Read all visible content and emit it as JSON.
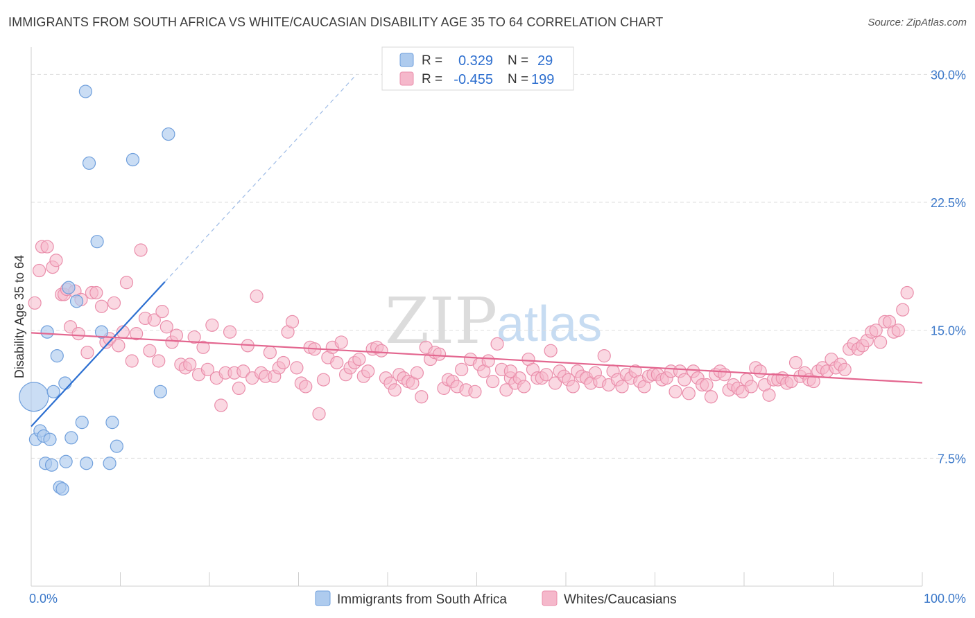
{
  "title": "IMMIGRANTS FROM SOUTH AFRICA VS WHITE/CAUCASIAN DISABILITY AGE 35 TO 64 CORRELATION CHART",
  "source": "Source: ZipAtlas.com",
  "watermark": {
    "zip": "ZIP",
    "atlas": "atlas"
  },
  "colors": {
    "blue_fill": "#aecbee",
    "blue_stroke": "#6f9fdc",
    "blue_line": "#2c6fd1",
    "pink_fill": "#f5b8cb",
    "pink_stroke": "#ea8eab",
    "pink_line": "#e3668f",
    "grid": "#dddddd",
    "axis_text": "#3b78c9"
  },
  "legend": {
    "rows": [
      {
        "r_label": "R =",
        "r_value": "0.329",
        "n_label": "N =",
        "n_value": "29",
        "color": "blue"
      },
      {
        "r_label": "R =",
        "r_value": "-0.455",
        "n_label": "N =",
        "n_value": "199",
        "color": "pink"
      }
    ]
  },
  "chart_data": {
    "type": "scatter",
    "title": "IMMIGRANTS FROM SOUTH AFRICA VS WHITE/CAUCASIAN DISABILITY AGE 35 TO 64 CORRELATION CHART",
    "xlabel": "",
    "ylabel": "Disability Age 35 to 64",
    "xlim": [
      0,
      100
    ],
    "ylim": [
      0,
      31.6
    ],
    "x_tick_labels": [
      {
        "value": 0,
        "label": "0.0%"
      },
      {
        "value": 100,
        "label": "100.0%"
      }
    ],
    "y_ticks": [
      {
        "value": 7.5,
        "label": "7.5%"
      },
      {
        "value": 15.0,
        "label": "15.0%"
      },
      {
        "value": 22.5,
        "label": "22.5%"
      },
      {
        "value": 30.0,
        "label": "30.0%"
      }
    ],
    "grid": true,
    "legend_position": "top-center",
    "series": [
      {
        "name": "Immigrants from South Africa",
        "color": "blue",
        "points": [
          [
            0.3,
            11.1,
            3
          ],
          [
            0.5,
            8.6,
            1
          ],
          [
            1.0,
            9.1,
            1
          ],
          [
            1.4,
            8.8,
            1
          ],
          [
            1.6,
            7.2,
            1
          ],
          [
            1.8,
            14.9,
            1
          ],
          [
            2.1,
            8.6,
            1
          ],
          [
            2.3,
            7.1,
            1
          ],
          [
            2.5,
            11.4,
            1
          ],
          [
            2.9,
            13.5,
            1
          ],
          [
            3.2,
            5.8,
            1
          ],
          [
            3.5,
            5.7,
            1
          ],
          [
            3.8,
            11.9,
            1
          ],
          [
            3.9,
            7.3,
            1
          ],
          [
            4.2,
            17.5,
            1
          ],
          [
            4.5,
            8.7,
            1
          ],
          [
            5.1,
            16.7,
            1
          ],
          [
            5.7,
            9.6,
            1
          ],
          [
            6.1,
            29.0,
            1
          ],
          [
            6.2,
            7.2,
            1
          ],
          [
            6.5,
            24.8,
            1
          ],
          [
            7.4,
            20.2,
            1
          ],
          [
            7.9,
            14.9,
            1
          ],
          [
            8.8,
            7.2,
            1
          ],
          [
            9.1,
            9.6,
            1
          ],
          [
            9.6,
            8.2,
            1
          ],
          [
            11.4,
            25.0,
            1
          ],
          [
            14.5,
            11.4,
            1
          ],
          [
            15.4,
            26.5,
            1
          ]
        ],
        "trend": {
          "x0": 0.0,
          "y0": 9.36,
          "x1": 15.0,
          "y1": 17.84,
          "dash_to_x": 36.5
        }
      },
      {
        "name": "Whites/Caucasians",
        "color": "pink",
        "points": [
          [
            0.4,
            16.6
          ],
          [
            0.9,
            18.5
          ],
          [
            1.2,
            19.9
          ],
          [
            1.8,
            19.9
          ],
          [
            2.4,
            18.7
          ],
          [
            2.8,
            19.1
          ],
          [
            3.4,
            17.1
          ],
          [
            3.7,
            17.1
          ],
          [
            4.0,
            17.4
          ],
          [
            4.4,
            15.2
          ],
          [
            4.9,
            17.3
          ],
          [
            5.3,
            14.8
          ],
          [
            5.6,
            16.8
          ],
          [
            6.3,
            13.7
          ],
          [
            6.8,
            17.2
          ],
          [
            7.3,
            17.2
          ],
          [
            7.9,
            16.4
          ],
          [
            8.4,
            14.3
          ],
          [
            8.8,
            14.5
          ],
          [
            9.3,
            16.6
          ],
          [
            9.8,
            14.1
          ],
          [
            10.3,
            14.9
          ],
          [
            10.7,
            17.8
          ],
          [
            11.3,
            13.2
          ],
          [
            11.8,
            14.8
          ],
          [
            12.3,
            19.7
          ],
          [
            12.8,
            15.7
          ],
          [
            13.3,
            13.8
          ],
          [
            13.8,
            15.6
          ],
          [
            14.3,
            13.2
          ],
          [
            14.7,
            16.1
          ],
          [
            15.2,
            15.2
          ],
          [
            15.8,
            14.3
          ],
          [
            16.3,
            14.7
          ],
          [
            16.8,
            13.0
          ],
          [
            17.3,
            12.8
          ],
          [
            17.8,
            13.0
          ],
          [
            18.3,
            14.6
          ],
          [
            18.8,
            12.4
          ],
          [
            19.3,
            14.0
          ],
          [
            19.8,
            12.7
          ],
          [
            20.3,
            15.3
          ],
          [
            20.8,
            12.2
          ],
          [
            21.3,
            10.6
          ],
          [
            21.8,
            12.5
          ],
          [
            22.3,
            14.9
          ],
          [
            22.8,
            12.5
          ],
          [
            23.3,
            11.6
          ],
          [
            23.8,
            12.6
          ],
          [
            24.3,
            14.1
          ],
          [
            24.8,
            12.2
          ],
          [
            25.3,
            17.0
          ],
          [
            25.8,
            12.5
          ],
          [
            26.3,
            12.3
          ],
          [
            26.8,
            13.7
          ],
          [
            27.3,
            12.3
          ],
          [
            27.8,
            12.8
          ],
          [
            28.3,
            13.1
          ],
          [
            28.8,
            14.9
          ],
          [
            29.3,
            15.5
          ],
          [
            29.8,
            12.8
          ],
          [
            30.3,
            11.9
          ],
          [
            30.8,
            11.7
          ],
          [
            31.3,
            14.0
          ],
          [
            31.8,
            13.9
          ],
          [
            32.3,
            10.1
          ],
          [
            32.8,
            12.1
          ],
          [
            33.3,
            13.4
          ],
          [
            33.8,
            14.0
          ],
          [
            34.3,
            13.1
          ],
          [
            34.8,
            14.3
          ],
          [
            35.3,
            12.4
          ],
          [
            35.8,
            12.8
          ],
          [
            36.3,
            13.1
          ],
          [
            36.8,
            13.3
          ],
          [
            37.3,
            12.3
          ],
          [
            37.8,
            12.6
          ],
          [
            38.3,
            13.9
          ],
          [
            38.8,
            14.0
          ],
          [
            39.3,
            13.8
          ],
          [
            39.8,
            12.2
          ],
          [
            40.3,
            11.9
          ],
          [
            40.8,
            11.5
          ],
          [
            41.3,
            12.4
          ],
          [
            41.8,
            12.2
          ],
          [
            42.3,
            12.0
          ],
          [
            42.8,
            11.9
          ],
          [
            43.3,
            12.5
          ],
          [
            43.8,
            11.1
          ],
          [
            44.3,
            14.0
          ],
          [
            44.8,
            13.3
          ],
          [
            45.3,
            13.7
          ],
          [
            45.8,
            13.6
          ],
          [
            46.3,
            11.6
          ],
          [
            46.8,
            12.1
          ],
          [
            47.3,
            12.0
          ],
          [
            47.8,
            11.7
          ],
          [
            48.3,
            12.7
          ],
          [
            48.8,
            11.5
          ],
          [
            49.3,
            13.3
          ],
          [
            49.8,
            11.4
          ],
          [
            50.3,
            13.0
          ],
          [
            50.8,
            12.6
          ],
          [
            51.3,
            13.2
          ],
          [
            51.8,
            12.0
          ],
          [
            52.3,
            14.2
          ],
          [
            52.8,
            12.7
          ],
          [
            53.3,
            11.5
          ],
          [
            53.8,
            12.2
          ],
          [
            54.3,
            11.9
          ],
          [
            54.8,
            12.2
          ],
          [
            55.3,
            11.7
          ],
          [
            55.8,
            13.3
          ],
          [
            56.3,
            12.7
          ],
          [
            56.8,
            12.2
          ],
          [
            57.3,
            12.2
          ],
          [
            57.8,
            12.4
          ],
          [
            58.3,
            13.8
          ],
          [
            58.8,
            11.9
          ],
          [
            59.3,
            12.6
          ],
          [
            59.8,
            12.3
          ],
          [
            60.3,
            12.1
          ],
          [
            60.8,
            11.7
          ],
          [
            61.3,
            12.6
          ],
          [
            61.8,
            12.3
          ],
          [
            62.3,
            12.2
          ],
          [
            62.8,
            11.9
          ],
          [
            63.3,
            12.5
          ],
          [
            63.8,
            12.0
          ],
          [
            64.3,
            13.5
          ],
          [
            64.8,
            11.8
          ],
          [
            65.3,
            12.6
          ],
          [
            65.8,
            12.1
          ],
          [
            66.3,
            11.7
          ],
          [
            66.8,
            12.4
          ],
          [
            67.3,
            12.2
          ],
          [
            67.8,
            12.6
          ],
          [
            68.3,
            12.0
          ],
          [
            68.8,
            11.7
          ],
          [
            69.3,
            12.3
          ],
          [
            69.8,
            12.4
          ],
          [
            70.3,
            12.4
          ],
          [
            70.8,
            12.1
          ],
          [
            71.3,
            12.2
          ],
          [
            71.8,
            12.6
          ],
          [
            72.3,
            11.4
          ],
          [
            72.8,
            12.6
          ],
          [
            73.3,
            12.1
          ],
          [
            73.8,
            11.3
          ],
          [
            74.3,
            12.6
          ],
          [
            74.8,
            12.2
          ],
          [
            75.3,
            11.8
          ],
          [
            75.8,
            11.8
          ],
          [
            76.3,
            11.1
          ],
          [
            76.8,
            12.4
          ],
          [
            77.3,
            12.6
          ],
          [
            77.8,
            12.4
          ],
          [
            78.3,
            11.5
          ],
          [
            78.8,
            11.8
          ],
          [
            79.3,
            11.6
          ],
          [
            79.8,
            11.4
          ],
          [
            80.3,
            12.1
          ],
          [
            80.8,
            11.7
          ],
          [
            81.3,
            12.8
          ],
          [
            81.8,
            12.6
          ],
          [
            82.3,
            11.8
          ],
          [
            82.8,
            11.2
          ],
          [
            83.3,
            12.1
          ],
          [
            83.8,
            12.1
          ],
          [
            84.3,
            12.2
          ],
          [
            84.8,
            11.9
          ],
          [
            85.3,
            12.0
          ],
          [
            85.8,
            13.1
          ],
          [
            86.3,
            12.3
          ],
          [
            86.8,
            12.5
          ],
          [
            87.3,
            12.1
          ],
          [
            87.8,
            12.0
          ],
          [
            88.3,
            12.6
          ],
          [
            88.8,
            12.8
          ],
          [
            89.3,
            12.6
          ],
          [
            89.8,
            13.3
          ],
          [
            90.3,
            12.8
          ],
          [
            90.8,
            13.0
          ],
          [
            91.3,
            12.7
          ],
          [
            91.8,
            13.9
          ],
          [
            92.3,
            14.2
          ],
          [
            92.8,
            13.9
          ],
          [
            93.3,
            14.1
          ],
          [
            93.8,
            14.4
          ],
          [
            94.3,
            14.9
          ],
          [
            94.8,
            15.0
          ],
          [
            95.3,
            14.3
          ],
          [
            95.8,
            15.5
          ],
          [
            96.3,
            15.5
          ],
          [
            96.8,
            14.9
          ],
          [
            97.3,
            15.0
          ],
          [
            97.8,
            16.2
          ],
          [
            98.3,
            17.2
          ],
          [
            53.8,
            12.6
          ]
        ],
        "trend": {
          "x0": 0.0,
          "y0": 14.85,
          "x1": 100.0,
          "y1": 11.92
        }
      }
    ]
  }
}
